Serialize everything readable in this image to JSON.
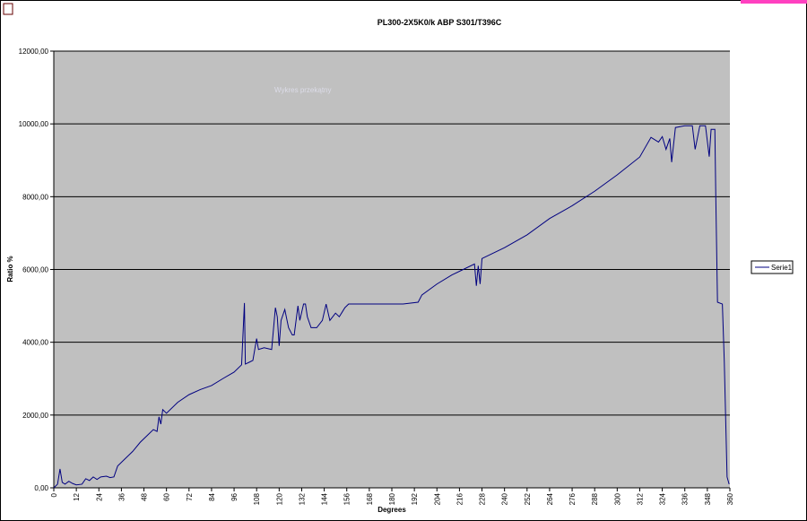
{
  "chart_data": {
    "type": "line",
    "title": "PL300-2X5K0/k ABP S301/T396C",
    "annotation": "Wykres przekątny",
    "xlabel": "Degrees",
    "ylabel": "Ratio %",
    "xlim": [
      0,
      360
    ],
    "xticks": [
      0,
      12,
      24,
      36,
      48,
      60,
      72,
      84,
      96,
      108,
      120,
      132,
      144,
      156,
      168,
      180,
      192,
      204,
      216,
      228,
      240,
      252,
      264,
      276,
      288,
      300,
      312,
      324,
      336,
      348,
      360
    ],
    "ylim": [
      0,
      12000
    ],
    "yticks": [
      {
        "value": 0,
        "label": "0,00"
      },
      {
        "value": 2000,
        "label": "2000,00"
      },
      {
        "value": 4000,
        "label": "4000,00"
      },
      {
        "value": 6000,
        "label": "6000,00"
      },
      {
        "value": 8000,
        "label": "8000,00"
      },
      {
        "value": 10000,
        "label": "10000,00"
      },
      {
        "value": 12000,
        "label": "12000,00"
      }
    ],
    "grid": true,
    "legend": "right",
    "x": [
      0,
      2,
      3.3,
      4.5,
      6,
      8,
      10,
      12,
      15,
      17,
      19,
      21,
      23,
      25,
      28,
      30,
      32,
      34,
      38,
      42,
      46,
      50,
      53,
      55,
      56,
      57,
      58,
      60,
      66,
      72,
      78,
      84,
      90,
      96,
      100,
      101.5,
      102,
      104,
      106,
      108,
      109,
      112,
      116,
      118,
      119,
      120,
      121,
      123,
      125,
      127,
      128,
      130,
      131,
      133,
      134,
      135,
      137,
      140,
      143,
      145,
      147,
      150,
      152,
      155,
      157,
      162,
      174,
      186,
      194,
      196,
      204,
      212,
      218,
      224,
      225,
      226,
      227,
      228,
      240,
      252,
      264,
      276,
      288,
      300,
      312,
      318,
      322,
      324,
      326,
      328,
      329,
      331,
      336,
      340,
      341.5,
      344,
      347,
      349,
      350,
      352,
      352.5,
      353.4,
      356,
      357,
      358.5,
      359.6
    ],
    "series": [
      {
        "name": "Serie1",
        "color": "#000080",
        "values": [
          0,
          100,
          520,
          150,
          100,
          180,
          120,
          80,
          100,
          250,
          200,
          300,
          230,
          300,
          320,
          280,
          300,
          600,
          800,
          1000,
          1250,
          1450,
          1600,
          1550,
          1950,
          1750,
          2150,
          2050,
          2350,
          2560,
          2700,
          2810,
          3000,
          3180,
          3380,
          5080,
          3400,
          3450,
          3500,
          4100,
          3800,
          3850,
          3800,
          4950,
          4700,
          3900,
          4600,
          4900,
          4400,
          4200,
          4200,
          5000,
          4600,
          5050,
          5050,
          4700,
          4400,
          4400,
          4600,
          5050,
          4600,
          4800,
          4700,
          4950,
          5050,
          5050,
          5050,
          5050,
          5100,
          5300,
          5600,
          5850,
          6000,
          6150,
          5550,
          6100,
          5600,
          6300,
          6600,
          6950,
          7400,
          7750,
          8150,
          8600,
          9090,
          9630,
          9500,
          9650,
          9300,
          9600,
          8950,
          9900,
          9950,
          9950,
          9300,
          9950,
          9950,
          9100,
          9850,
          9850,
          8000,
          5100,
          5050,
          3500,
          300,
          100
        ]
      }
    ]
  }
}
